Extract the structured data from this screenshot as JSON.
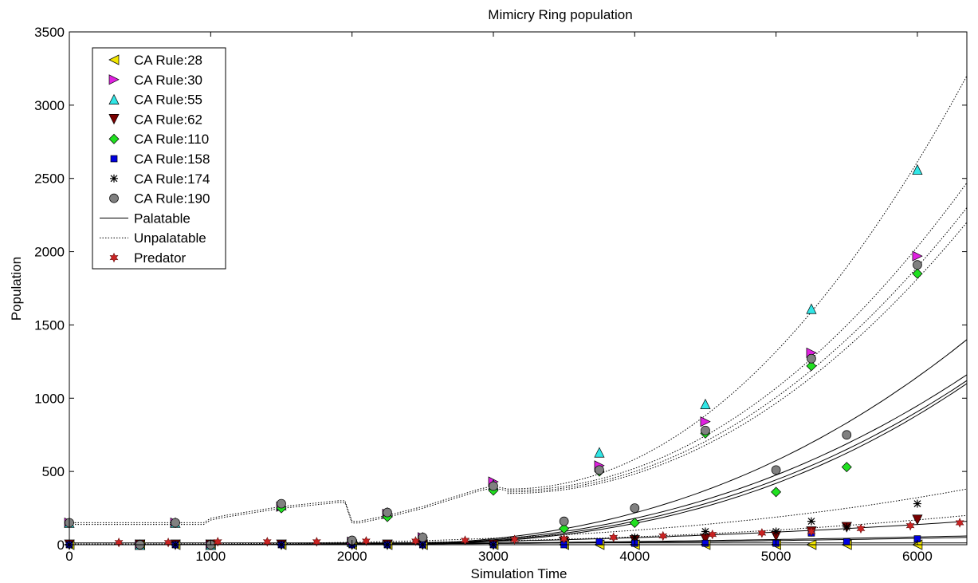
{
  "chart_data": {
    "type": "line",
    "title": "Mimicry Ring population",
    "xlabel": "Simulation Time",
    "ylabel": "Population",
    "xlim": [
      0,
      6350
    ],
    "ylim": [
      0,
      3500
    ],
    "xticks": [
      0,
      1000,
      2000,
      3000,
      4000,
      5000,
      6000
    ],
    "yticks": [
      0,
      500,
      1000,
      1500,
      2000,
      2500,
      3000,
      3500
    ],
    "grid": false,
    "legend_position": "top-left",
    "colors": {
      "rule28": "#f2e600",
      "rule30": "#e020e0",
      "rule55": "#30e6e6",
      "rule62": "#7a0000",
      "rule110": "#20e020",
      "rule158": "#0000e0",
      "rule174": "#000000",
      "rule190": "#808080",
      "predator": "#cc2222"
    },
    "legend": [
      {
        "label": "CA Rule:28",
        "marker": "triangle-left",
        "color": "#f2e600"
      },
      {
        "label": "CA Rule:30",
        "marker": "triangle-right",
        "color": "#e020e0"
      },
      {
        "label": "CA Rule:55",
        "marker": "triangle-up",
        "color": "#30e6e6"
      },
      {
        "label": "CA Rule:62",
        "marker": "triangle-down",
        "color": "#7a0000"
      },
      {
        "label": "CA Rule:110",
        "marker": "diamond",
        "color": "#20e020"
      },
      {
        "label": "CA Rule:158",
        "marker": "square",
        "color": "#0000e0"
      },
      {
        "label": "CA Rule:174",
        "marker": "asterisk",
        "color": "#000000"
      },
      {
        "label": "CA Rule:190",
        "marker": "circle",
        "color": "#808080"
      },
      {
        "label": "Palatable",
        "marker": "solid-line",
        "color": "#000000"
      },
      {
        "label": "Unpalatable",
        "marker": "dotted-line",
        "color": "#000000"
      },
      {
        "label": "Predator",
        "marker": "hexagram",
        "color": "#cc2222"
      }
    ],
    "series": [
      {
        "name": "CA Rule:28",
        "marker": "triangle-left",
        "color": "#f2e600",
        "x": [
          0,
          500,
          750,
          1000,
          1500,
          2000,
          2250,
          2500,
          3000,
          3500,
          3750,
          4000,
          4500,
          5000,
          5250,
          5500,
          6000
        ],
        "y": [
          0,
          0,
          0,
          0,
          0,
          0,
          0,
          0,
          0,
          0,
          0,
          0,
          0,
          0,
          0,
          0,
          0
        ]
      },
      {
        "name": "CA Rule:30",
        "marker": "triangle-right",
        "color": "#e020e0",
        "x": [
          0,
          500,
          750,
          1000,
          1500,
          2000,
          2250,
          2500,
          3000,
          3750,
          4500,
          5250,
          6000
        ],
        "y": [
          150,
          0,
          150,
          0,
          260,
          20,
          210,
          50,
          430,
          540,
          840,
          1310,
          1970
        ]
      },
      {
        "name": "CA Rule:55",
        "marker": "triangle-up",
        "color": "#30e6e6",
        "x": [
          0,
          500,
          750,
          1000,
          1500,
          2000,
          2250,
          2500,
          3000,
          3750,
          4500,
          5250,
          6000
        ],
        "y": [
          150,
          0,
          150,
          0,
          270,
          20,
          220,
          50,
          410,
          630,
          960,
          1610,
          2560
        ]
      },
      {
        "name": "CA Rule:62",
        "marker": "triangle-down",
        "color": "#7a0000",
        "x": [
          0,
          500,
          750,
          1000,
          1500,
          2000,
          2250,
          2500,
          3000,
          3500,
          4000,
          4500,
          5000,
          5250,
          5500,
          6000
        ],
        "y": [
          0,
          0,
          0,
          0,
          0,
          0,
          0,
          0,
          0,
          20,
          30,
          40,
          60,
          90,
          120,
          170
        ]
      },
      {
        "name": "CA Rule:110",
        "marker": "diamond",
        "color": "#20e020",
        "x": [
          0,
          500,
          750,
          1000,
          1500,
          2000,
          2250,
          2500,
          3000,
          3500,
          3750,
          4000,
          4500,
          5000,
          5250,
          5500,
          6000
        ],
        "y": [
          150,
          0,
          150,
          0,
          250,
          20,
          190,
          50,
          370,
          110,
          500,
          150,
          760,
          360,
          1220,
          530,
          1850
        ]
      },
      {
        "name": "CA Rule:158",
        "marker": "square",
        "color": "#0000e0",
        "x": [
          0,
          500,
          750,
          1000,
          1500,
          2000,
          2250,
          2500,
          3000,
          3500,
          3750,
          4000,
          4500,
          5000,
          5250,
          5500,
          6000
        ],
        "y": [
          0,
          0,
          0,
          0,
          0,
          0,
          0,
          0,
          0,
          0,
          20,
          10,
          10,
          10,
          80,
          20,
          40
        ]
      },
      {
        "name": "CA Rule:174",
        "marker": "asterisk",
        "color": "#000000",
        "x": [
          0,
          500,
          750,
          1000,
          1500,
          2000,
          2250,
          2500,
          3000,
          3500,
          4000,
          4500,
          5000,
          5250,
          5500,
          6000
        ],
        "y": [
          0,
          0,
          0,
          0,
          0,
          0,
          0,
          0,
          0,
          40,
          50,
          90,
          90,
          160,
          120,
          280
        ]
      },
      {
        "name": "CA Rule:190",
        "marker": "circle",
        "color": "#808080",
        "x": [
          0,
          500,
          750,
          1000,
          1500,
          2000,
          2250,
          2500,
          3000,
          3500,
          3750,
          4000,
          4500,
          5000,
          5250,
          5500,
          6000
        ],
        "y": [
          150,
          0,
          150,
          0,
          280,
          30,
          220,
          50,
          400,
          160,
          510,
          250,
          780,
          510,
          1270,
          750,
          1910
        ]
      },
      {
        "name": "Predator",
        "marker": "hexagram",
        "color": "#cc2222",
        "x": [
          350,
          700,
          1050,
          1400,
          1750,
          2100,
          2450,
          2800,
          3150,
          3500,
          3850,
          4200,
          4550,
          4900,
          5250,
          5600,
          5950,
          6300
        ],
        "y": [
          15,
          15,
          20,
          20,
          20,
          25,
          25,
          30,
          35,
          40,
          50,
          60,
          70,
          80,
          90,
          110,
          130,
          150
        ]
      }
    ]
  }
}
